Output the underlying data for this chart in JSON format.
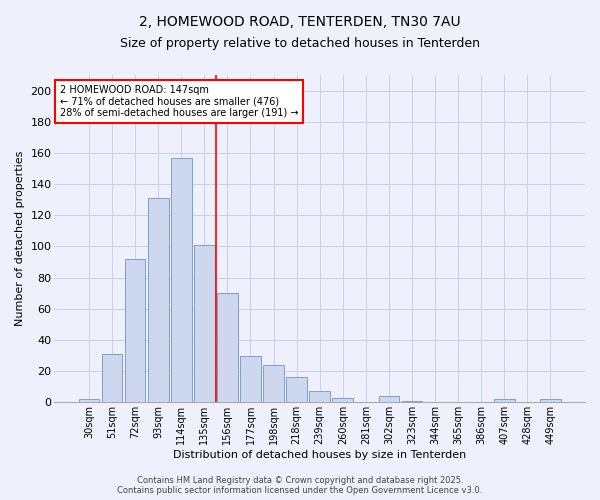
{
  "title": "2, HOMEWOOD ROAD, TENTERDEN, TN30 7AU",
  "subtitle": "Size of property relative to detached houses in Tenterden",
  "xlabel": "Distribution of detached houses by size in Tenterden",
  "ylabel": "Number of detached properties",
  "bar_color": "#cdd8ef",
  "bar_edge_color": "#6b96c8",
  "background_color": "#eef1fb",
  "grid_color": "#c8cef0",
  "categories": [
    "30sqm",
    "51sqm",
    "72sqm",
    "93sqm",
    "114sqm",
    "135sqm",
    "156sqm",
    "177sqm",
    "198sqm",
    "218sqm",
    "239sqm",
    "260sqm",
    "281sqm",
    "302sqm",
    "323sqm",
    "344sqm",
    "365sqm",
    "386sqm",
    "407sqm",
    "428sqm",
    "449sqm"
  ],
  "values": [
    2,
    31,
    92,
    131,
    157,
    101,
    70,
    30,
    24,
    16,
    7,
    3,
    0,
    4,
    1,
    0,
    0,
    0,
    2,
    0,
    2
  ],
  "red_line_x": 5.5,
  "annotation_line1": "2 HOMEWOOD ROAD: 147sqm",
  "annotation_line2": "← 71% of detached houses are smaller (476)",
  "annotation_line3": "28% of semi-detached houses are larger (191) →",
  "annotation_box_color": "white",
  "annotation_box_edge_color": "red",
  "ylim": [
    0,
    210
  ],
  "yticks": [
    0,
    20,
    40,
    60,
    80,
    100,
    120,
    140,
    160,
    180,
    200
  ],
  "footnote": "Contains HM Land Registry data © Crown copyright and database right 2025.\nContains public sector information licensed under the Open Government Licence v3.0.",
  "title_fontsize": 10,
  "subtitle_fontsize": 9,
  "annotation_fontsize": 7,
  "ylabel_fontsize": 8,
  "xlabel_fontsize": 8,
  "tick_fontsize": 7,
  "ytick_fontsize": 8
}
